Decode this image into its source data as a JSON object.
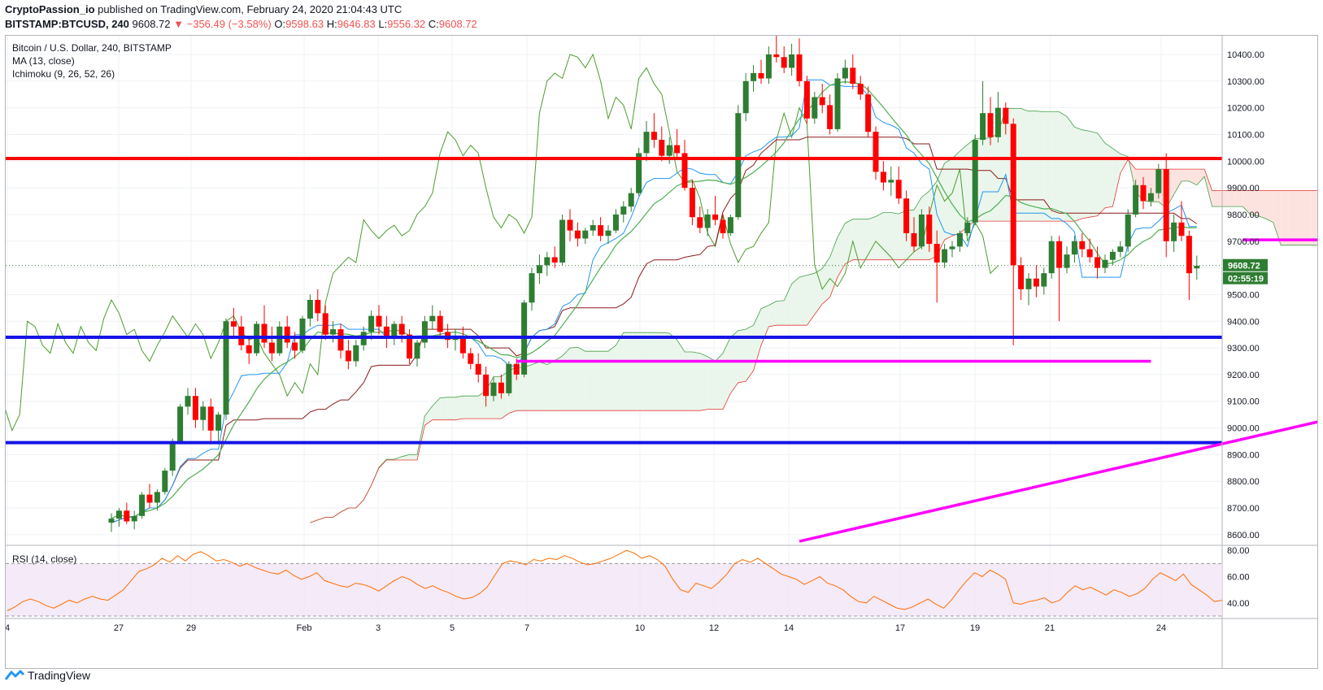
{
  "header": {
    "author": "CryptoPassion_io",
    "published_text": "published on TradingView.com, February 24, 2020 21:04:43 UTC",
    "symbol": "BITSTAMP:BTCUSD, 240",
    "last": "9608.72",
    "change": "▼ −356.49 (−3.58%)",
    "o_label": "O:",
    "o": "9598.63",
    "h_label": "H:",
    "h": "9646.83",
    "l_label": "L:",
    "l": "9556.32",
    "c_label": "C:",
    "c": "9608.72"
  },
  "legend": {
    "title": "Bitcoin / U.S. Dollar, 240, BITSTAMP",
    "ma": "MA (13, close)",
    "ichimoku": "Ichimoku (9, 26, 52, 26)",
    "rsi": "RSI (14, close)"
  },
  "price_badge": "9608.72",
  "countdown_badge": "02:55:19",
  "footer": {
    "brand": "TradingView"
  },
  "colors": {
    "bull": "#2e7d32",
    "bear": "#ff0000",
    "ma": "#4caf50",
    "tenkan": "#2196f3",
    "kijun": "#8b1a1a",
    "chikou": "#4c9c2e",
    "cloud_bull": "#e8f5e9",
    "cloud_bear": "#fde0dc",
    "hline_red": "#ff0000",
    "hline_blue": "#1515e6",
    "magenta": "#ff00ff",
    "rsi": "#ff6d00"
  },
  "chart_data": {
    "type": "candlestick",
    "title": "Bitcoin / U.S. Dollar, 240, BITSTAMP",
    "ylim": [
      8560,
      10470
    ],
    "y_ticks": [
      8600,
      8700,
      8800,
      8900,
      9000,
      9100,
      9200,
      9300,
      9400,
      9500,
      9600,
      9700,
      9800,
      9900,
      10000,
      10100,
      10200,
      10300,
      10400
    ],
    "x_ticks": [
      "4",
      "27",
      "29",
      "Feb",
      "3",
      "5",
      "7",
      "10",
      "12",
      "14",
      "17",
      "19",
      "21",
      "24"
    ],
    "last_price": 9608.72,
    "horizontal_lines": [
      {
        "price": 10010,
        "color": "red"
      },
      {
        "price": 9340,
        "color": "blue"
      },
      {
        "price": 8945,
        "color": "blue"
      }
    ],
    "segments": [
      {
        "from_bar": 53,
        "to_bar": 136,
        "price": 9250
      },
      {
        "from_bar": 148,
        "to_bar": 248,
        "price": 9705
      },
      {
        "from_bar": 90,
        "to_bar": 333,
        "from_price": 8575,
        "to_price": 10180
      }
    ],
    "rsi": {
      "ylim": [
        30,
        82
      ],
      "y_ticks": [
        40,
        60,
        80
      ],
      "bands": [
        70,
        30
      ],
      "values": [
        34,
        37,
        41,
        43,
        41,
        38,
        36,
        39,
        42,
        40,
        43,
        45,
        43,
        42,
        46,
        50,
        57,
        64,
        66,
        69,
        74,
        71,
        76,
        72,
        77,
        79,
        76,
        72,
        73,
        71,
        68,
        70,
        67,
        65,
        63,
        62,
        65,
        61,
        58,
        60,
        63,
        57,
        55,
        53,
        52,
        55,
        54,
        52,
        49,
        53,
        57,
        60,
        58,
        54,
        51,
        53,
        50,
        48,
        45,
        43,
        44,
        47,
        52,
        61,
        70,
        72,
        71,
        69,
        73,
        72,
        74,
        73,
        76,
        74,
        71,
        69,
        70,
        72,
        74,
        77,
        80,
        78,
        74,
        76,
        73,
        68,
        58,
        50,
        48,
        55,
        53,
        51,
        56,
        62,
        70,
        73,
        71,
        74,
        70,
        66,
        62,
        60,
        58,
        54,
        57,
        60,
        55,
        53,
        50,
        45,
        41,
        40,
        45,
        42,
        39,
        36,
        35,
        37,
        40,
        43,
        39,
        36,
        42,
        50,
        57,
        63,
        60,
        65,
        62,
        58,
        40,
        39,
        41,
        42,
        44,
        40,
        42,
        48,
        53,
        50,
        52,
        49,
        46,
        50,
        48,
        45,
        47,
        51,
        58,
        63,
        60,
        57,
        62,
        54,
        50,
        46,
        41,
        42
      ]
    },
    "ohlc": [
      [
        8645,
        8680,
        8610,
        8660
      ],
      [
        8660,
        8700,
        8630,
        8690
      ],
      [
        8690,
        8720,
        8640,
        8650
      ],
      [
        8650,
        8690,
        8620,
        8670
      ],
      [
        8670,
        8760,
        8660,
        8750
      ],
      [
        8750,
        8790,
        8700,
        8720
      ],
      [
        8720,
        8770,
        8690,
        8760
      ],
      [
        8760,
        8850,
        8750,
        8840
      ],
      [
        8840,
        8960,
        8820,
        8950
      ],
      [
        8950,
        9090,
        8940,
        9080
      ],
      [
        9080,
        9150,
        9050,
        9120
      ],
      [
        9120,
        9150,
        9000,
        9030
      ],
      [
        9030,
        9100,
        8990,
        9080
      ],
      [
        9080,
        9110,
        8950,
        8990
      ],
      [
        8990,
        9060,
        8950,
        9050
      ],
      [
        9050,
        9410,
        9030,
        9400
      ],
      [
        9400,
        9450,
        9340,
        9380
      ],
      [
        9380,
        9420,
        9290,
        9310
      ],
      [
        9310,
        9340,
        9240,
        9280
      ],
      [
        9280,
        9400,
        9270,
        9390
      ],
      [
        9390,
        9460,
        9300,
        9320
      ],
      [
        9320,
        9380,
        9250,
        9280
      ],
      [
        9280,
        9400,
        9270,
        9380
      ],
      [
        9380,
        9420,
        9300,
        9320
      ],
      [
        9320,
        9360,
        9260,
        9290
      ],
      [
        9290,
        9420,
        9280,
        9410
      ],
      [
        9410,
        9500,
        9380,
        9480
      ],
      [
        9480,
        9520,
        9400,
        9430
      ],
      [
        9430,
        9460,
        9330,
        9350
      ],
      [
        9350,
        9400,
        9320,
        9370
      ],
      [
        9370,
        9390,
        9260,
        9290
      ],
      [
        9290,
        9330,
        9220,
        9250
      ],
      [
        9250,
        9330,
        9230,
        9310
      ],
      [
        9310,
        9380,
        9290,
        9360
      ],
      [
        9360,
        9440,
        9330,
        9420
      ],
      [
        9420,
        9460,
        9350,
        9380
      ],
      [
        9380,
        9420,
        9300,
        9340
      ],
      [
        9340,
        9400,
        9310,
        9390
      ],
      [
        9390,
        9420,
        9320,
        9350
      ],
      [
        9350,
        9370,
        9240,
        9260
      ],
      [
        9260,
        9330,
        9230,
        9320
      ],
      [
        9320,
        9420,
        9300,
        9400
      ],
      [
        9400,
        9460,
        9370,
        9420
      ],
      [
        9420,
        9440,
        9340,
        9360
      ],
      [
        9360,
        9390,
        9300,
        9330
      ],
      [
        9330,
        9370,
        9290,
        9340
      ],
      [
        9340,
        9380,
        9260,
        9280
      ],
      [
        9280,
        9300,
        9220,
        9240
      ],
      [
        9240,
        9280,
        9170,
        9200
      ],
      [
        9200,
        9230,
        9080,
        9120
      ],
      [
        9120,
        9190,
        9100,
        9170
      ],
      [
        9170,
        9200,
        9110,
        9130
      ],
      [
        9130,
        9250,
        9120,
        9240
      ],
      [
        9240,
        9260,
        9180,
        9200
      ],
      [
        9200,
        9480,
        9190,
        9470
      ],
      [
        9470,
        9600,
        9440,
        9580
      ],
      [
        9580,
        9650,
        9540,
        9610
      ],
      [
        9610,
        9660,
        9570,
        9640
      ],
      [
        9640,
        9680,
        9600,
        9620
      ],
      [
        9620,
        9800,
        9610,
        9780
      ],
      [
        9780,
        9820,
        9700,
        9740
      ],
      [
        9740,
        9770,
        9680,
        9710
      ],
      [
        9710,
        9750,
        9690,
        9740
      ],
      [
        9740,
        9780,
        9720,
        9760
      ],
      [
        9760,
        9790,
        9700,
        9720
      ],
      [
        9720,
        9760,
        9690,
        9740
      ],
      [
        9740,
        9820,
        9730,
        9800
      ],
      [
        9800,
        9850,
        9770,
        9830
      ],
      [
        9830,
        9900,
        9810,
        9880
      ],
      [
        9880,
        10050,
        9870,
        10030
      ],
      [
        10030,
        10150,
        10000,
        10110
      ],
      [
        10110,
        10180,
        10050,
        10080
      ],
      [
        10080,
        10130,
        10000,
        10020
      ],
      [
        10020,
        10090,
        9990,
        10060
      ],
      [
        10060,
        10120,
        10010,
        10030
      ],
      [
        10030,
        10080,
        9890,
        9900
      ],
      [
        9900,
        9930,
        9760,
        9790
      ],
      [
        9790,
        9830,
        9730,
        9750
      ],
      [
        9750,
        9820,
        9720,
        9800
      ],
      [
        9800,
        9870,
        9760,
        9780
      ],
      [
        9780,
        9800,
        9710,
        9730
      ],
      [
        9730,
        9800,
        9720,
        9790
      ],
      [
        9790,
        10210,
        9780,
        10180
      ],
      [
        10180,
        10330,
        10150,
        10300
      ],
      [
        10300,
        10360,
        10260,
        10330
      ],
      [
        10330,
        10380,
        10290,
        10310
      ],
      [
        10310,
        10430,
        10290,
        10400
      ],
      [
        10400,
        10470,
        10370,
        10390
      ],
      [
        10390,
        10430,
        10330,
        10350
      ],
      [
        10350,
        10440,
        10320,
        10400
      ],
      [
        10400,
        10460,
        10280,
        10300
      ],
      [
        10300,
        10320,
        10140,
        10160
      ],
      [
        10160,
        10260,
        10140,
        10240
      ],
      [
        10240,
        10290,
        10180,
        10210
      ],
      [
        10210,
        10250,
        10100,
        10120
      ],
      [
        10120,
        10330,
        10110,
        10310
      ],
      [
        10310,
        10380,
        10290,
        10350
      ],
      [
        10350,
        10400,
        10270,
        10290
      ],
      [
        10290,
        10320,
        10230,
        10250
      ],
      [
        10250,
        10280,
        10090,
        10110
      ],
      [
        10110,
        10130,
        9930,
        9960
      ],
      [
        9960,
        10000,
        9890,
        9920
      ],
      [
        9920,
        9980,
        9870,
        9930
      ],
      [
        9930,
        9980,
        9840,
        9860
      ],
      [
        9860,
        9890,
        9700,
        9730
      ],
      [
        9730,
        9790,
        9660,
        9680
      ],
      [
        9680,
        9820,
        9670,
        9800
      ],
      [
        9800,
        9830,
        9660,
        9690
      ],
      [
        9690,
        9740,
        9470,
        9620
      ],
      [
        9620,
        9690,
        9600,
        9670
      ],
      [
        9670,
        9700,
        9640,
        9680
      ],
      [
        9680,
        9740,
        9660,
        9730
      ],
      [
        9730,
        9790,
        9720,
        9770
      ],
      [
        9770,
        10100,
        9760,
        10080
      ],
      [
        10080,
        10300,
        10060,
        10180
      ],
      [
        10180,
        10240,
        10060,
        10090
      ],
      [
        10090,
        10260,
        10070,
        10200
      ],
      [
        10200,
        10220,
        10100,
        10140
      ],
      [
        10140,
        10160,
        9310,
        9610
      ],
      [
        9610,
        9640,
        9480,
        9520
      ],
      [
        9520,
        9580,
        9460,
        9560
      ],
      [
        9560,
        9610,
        9490,
        9530
      ],
      [
        9530,
        9600,
        9500,
        9580
      ],
      [
        9580,
        9720,
        9560,
        9700
      ],
      [
        9700,
        9720,
        9400,
        9600
      ],
      [
        9600,
        9680,
        9580,
        9650
      ],
      [
        9650,
        9720,
        9620,
        9700
      ],
      [
        9700,
        9730,
        9640,
        9670
      ],
      [
        9670,
        9710,
        9620,
        9640
      ],
      [
        9640,
        9680,
        9560,
        9600
      ],
      [
        9600,
        9650,
        9580,
        9630
      ],
      [
        9630,
        9670,
        9610,
        9660
      ],
      [
        9660,
        9700,
        9640,
        9680
      ],
      [
        9680,
        9820,
        9660,
        9800
      ],
      [
        9800,
        9930,
        9790,
        9910
      ],
      [
        9910,
        9940,
        9820,
        9850
      ],
      [
        9850,
        9900,
        9830,
        9880
      ],
      [
        9880,
        9990,
        9860,
        9970
      ],
      [
        9970,
        10030,
        9640,
        9700
      ],
      [
        9700,
        9800,
        9660,
        9770
      ],
      [
        9770,
        9850,
        9700,
        9720
      ],
      [
        9720,
        9740,
        9480,
        9580
      ],
      [
        9598,
        9646,
        9556,
        9608
      ]
    ]
  }
}
